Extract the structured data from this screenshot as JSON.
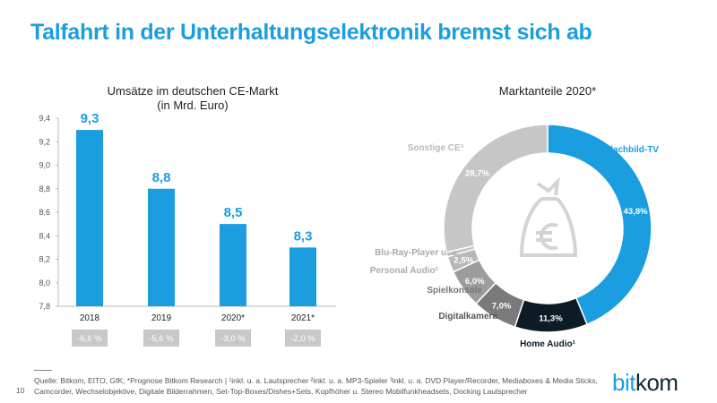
{
  "title": "Talfahrt in der Unterhaltungselektronik bremst sich ab",
  "chart_data": [
    {
      "type": "bar",
      "title": "Umsätze im deutschen CE-Markt",
      "subtitle": "(in Mrd. Euro)",
      "categories": [
        "2018",
        "2019",
        "2020*",
        "2021*"
      ],
      "values": [
        9.3,
        8.8,
        8.5,
        8.3
      ],
      "value_labels": [
        "9,3",
        "8,8",
        "8,5",
        "8,3"
      ],
      "changes": [
        "-6,6 %",
        "-5,6 %",
        "-3,0 %",
        "-2,0 %"
      ],
      "ylim": [
        7.8,
        9.4
      ],
      "yticks": [
        "7,8",
        "8,0",
        "8,2",
        "8,4",
        "8,6",
        "8,8",
        "9,0",
        "9,2",
        "9,4"
      ],
      "color": "#1a9ee0"
    },
    {
      "type": "pie",
      "style": "donut",
      "title": "Marktanteile 2020*",
      "center_icon": "money-bag-euro-icon",
      "slices": [
        {
          "label": "Flachbild-TV",
          "value": 43.8,
          "value_label": "43,8%",
          "color": "#1a9ee0"
        },
        {
          "label": "Home Audio¹",
          "value": 11.3,
          "value_label": "11,3%",
          "color": "#0c1b24"
        },
        {
          "label": "Digitalkamera",
          "value": 7.0,
          "value_label": "7,0%",
          "color": "#7a7a7a"
        },
        {
          "label": "Spielkonsole",
          "value": 6.0,
          "value_label": "6,0%",
          "color": "#9c9c9c"
        },
        {
          "label": "Personal Audio²",
          "value": 2.5,
          "value_label": "2,5%",
          "color": "#b8b8b8"
        },
        {
          "label": "Blu-Ray-Player u. a.",
          "value": 0.7,
          "value_label": "",
          "color": "#c2c2c2"
        },
        {
          "label": "Sonstige CE³",
          "value": 28.7,
          "value_label": "28,7%",
          "color": "#c6c6c6"
        }
      ]
    }
  ],
  "footer": {
    "source": "Quelle: Bitkom, EITO, GfK; *Prognose Bitkom Research | ¹inkl. u. a. Lautsprecher ²inkl. u. a. MP3-Spieler ³inkl. u. a. DVD Player/Recorder, Mediaboxes & Media Sticks, Camcorder, Wechselobjektive, Digitale Bilderrahmen, Set-Top-Boxes/Dishes+Sets, Kopfhöher u. Stereo Mobilfunkheadsets, Docking Lautsprecher",
    "page": "10",
    "logo_a": "bit",
    "logo_b": "kom"
  }
}
